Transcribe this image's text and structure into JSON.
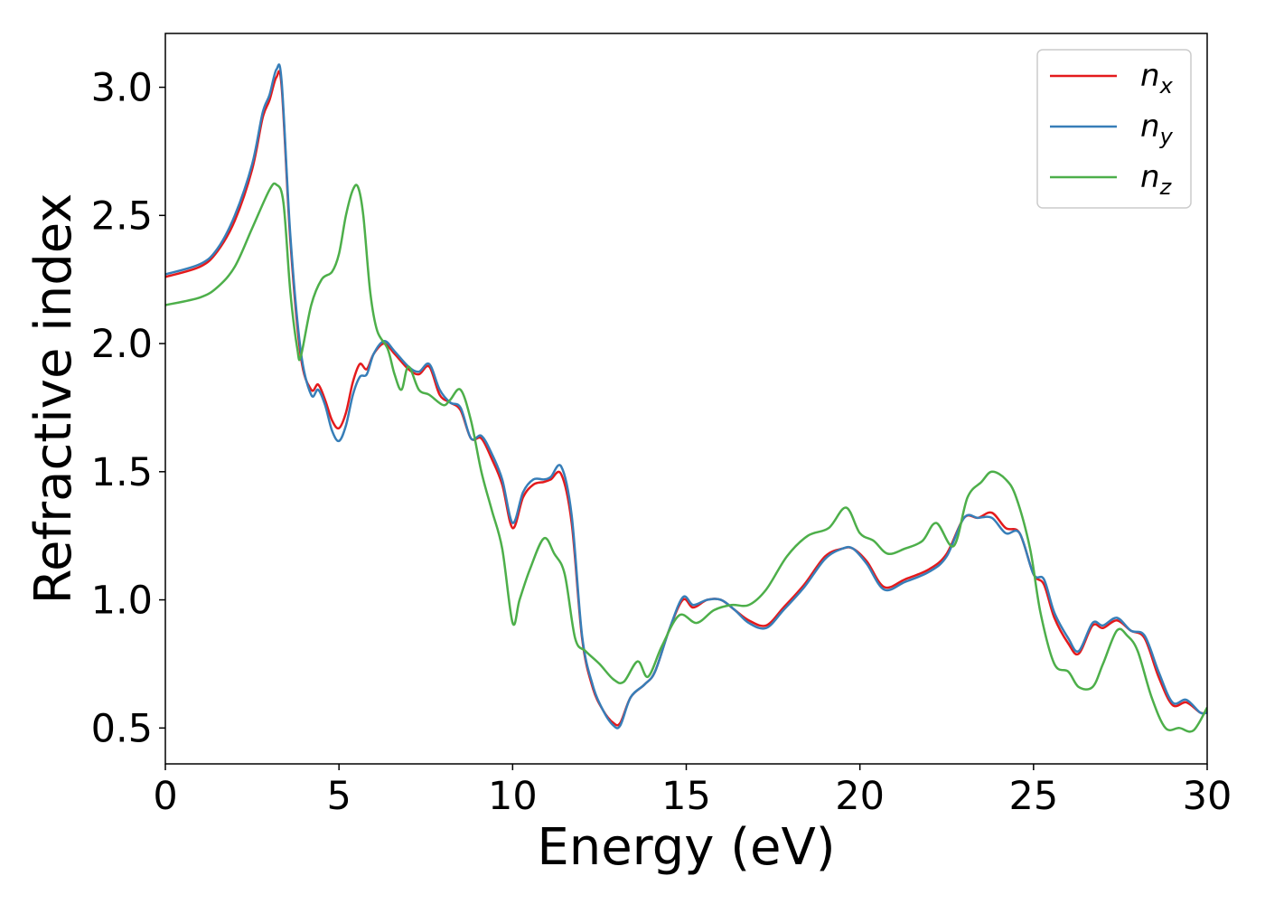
{
  "chart_data": {
    "type": "line",
    "xlabel": "Energy (eV)",
    "ylabel": "Refractive index",
    "xlim": [
      0,
      30
    ],
    "ylim": [
      0.36,
      3.21
    ],
    "xticks": [
      0,
      5,
      10,
      15,
      20,
      25,
      30
    ],
    "xtick_labels": [
      "0",
      "5",
      "10",
      "15",
      "20",
      "25",
      "30"
    ],
    "yticks": [
      0.5,
      1.0,
      1.5,
      2.0,
      2.5,
      3.0
    ],
    "ytick_labels": [
      "0.5",
      "1.0",
      "1.5",
      "2.0",
      "2.5",
      "3.0"
    ],
    "grid": false,
    "legend_position": "top-right",
    "series": [
      {
        "name": "n_x",
        "label_base": "n",
        "label_sub": "x",
        "color": "#e41a1c",
        "x": [
          0,
          1,
          1.5,
          2,
          2.5,
          2.8,
          3.0,
          3.2,
          3.35,
          3.6,
          3.9,
          4.2,
          4.4,
          4.6,
          4.8,
          5.0,
          5.2,
          5.4,
          5.6,
          5.8,
          6.0,
          6.3,
          6.6,
          7.0,
          7.3,
          7.6,
          7.9,
          8.2,
          8.5,
          8.8,
          9.1,
          9.4,
          9.7,
          10.0,
          10.3,
          10.6,
          10.9,
          11.1,
          11.4,
          11.7,
          12.0,
          12.3,
          12.6,
          12.9,
          13.1,
          13.4,
          13.8,
          14.1,
          14.5,
          14.9,
          15.2,
          15.6,
          16.0,
          16.4,
          16.8,
          17.3,
          17.8,
          18.4,
          19.0,
          19.5,
          19.8,
          20.2,
          20.7,
          21.3,
          22.0,
          22.5,
          23.0,
          23.4,
          23.8,
          24.2,
          24.6,
          25.0,
          25.3,
          25.6,
          26.0,
          26.3,
          26.7,
          27.0,
          27.4,
          27.8,
          28.2,
          28.6,
          29.0,
          29.4,
          29.8,
          30
        ],
        "y": [
          2.26,
          2.3,
          2.36,
          2.48,
          2.68,
          2.88,
          2.95,
          3.04,
          3.0,
          2.4,
          1.95,
          1.82,
          1.84,
          1.78,
          1.7,
          1.67,
          1.73,
          1.85,
          1.92,
          1.9,
          1.96,
          2.0,
          1.96,
          1.9,
          1.88,
          1.91,
          1.8,
          1.77,
          1.74,
          1.63,
          1.63,
          1.55,
          1.45,
          1.28,
          1.4,
          1.45,
          1.46,
          1.47,
          1.49,
          1.3,
          0.85,
          0.66,
          0.57,
          0.52,
          0.52,
          0.62,
          0.67,
          0.72,
          0.88,
          1.0,
          0.97,
          1.0,
          1.0,
          0.96,
          0.92,
          0.9,
          0.97,
          1.06,
          1.17,
          1.2,
          1.2,
          1.15,
          1.05,
          1.08,
          1.12,
          1.18,
          1.32,
          1.32,
          1.34,
          1.28,
          1.26,
          1.1,
          1.06,
          0.93,
          0.83,
          0.79,
          0.9,
          0.89,
          0.92,
          0.88,
          0.85,
          0.7,
          0.59,
          0.6,
          0.56,
          0.56
        ]
      },
      {
        "name": "n_y",
        "label_base": "n",
        "label_sub": "y",
        "color": "#377eb8",
        "x": [
          0,
          1,
          1.5,
          2,
          2.5,
          2.8,
          3.0,
          3.2,
          3.35,
          3.6,
          3.9,
          4.2,
          4.4,
          4.6,
          4.8,
          5.0,
          5.2,
          5.4,
          5.6,
          5.8,
          6.0,
          6.3,
          6.6,
          7.0,
          7.3,
          7.6,
          7.9,
          8.2,
          8.5,
          8.8,
          9.1,
          9.4,
          9.7,
          10.0,
          10.3,
          10.6,
          10.9,
          11.1,
          11.4,
          11.7,
          12.0,
          12.3,
          12.6,
          12.9,
          13.1,
          13.4,
          13.8,
          14.1,
          14.5,
          14.9,
          15.2,
          15.6,
          16.0,
          16.4,
          16.8,
          17.3,
          17.8,
          18.4,
          19.0,
          19.5,
          19.8,
          20.2,
          20.7,
          21.3,
          22.0,
          22.5,
          23.0,
          23.4,
          23.8,
          24.2,
          24.6,
          25.0,
          25.3,
          25.6,
          26.0,
          26.3,
          26.7,
          27.0,
          27.4,
          27.8,
          28.2,
          28.6,
          29.0,
          29.4,
          29.8,
          30
        ],
        "y": [
          2.27,
          2.31,
          2.37,
          2.5,
          2.7,
          2.9,
          2.97,
          3.07,
          3.02,
          2.42,
          1.97,
          1.8,
          1.82,
          1.76,
          1.66,
          1.62,
          1.68,
          1.8,
          1.87,
          1.88,
          1.96,
          2.01,
          1.97,
          1.91,
          1.89,
          1.92,
          1.82,
          1.77,
          1.75,
          1.63,
          1.64,
          1.57,
          1.47,
          1.3,
          1.42,
          1.47,
          1.47,
          1.48,
          1.52,
          1.33,
          0.86,
          0.67,
          0.57,
          0.51,
          0.51,
          0.62,
          0.67,
          0.72,
          0.88,
          1.01,
          0.98,
          1.0,
          1.0,
          0.96,
          0.91,
          0.89,
          0.96,
          1.05,
          1.16,
          1.2,
          1.2,
          1.14,
          1.04,
          1.07,
          1.11,
          1.17,
          1.32,
          1.32,
          1.32,
          1.26,
          1.26,
          1.1,
          1.08,
          0.95,
          0.85,
          0.8,
          0.91,
          0.9,
          0.93,
          0.88,
          0.86,
          0.72,
          0.6,
          0.61,
          0.56,
          0.56
        ]
      },
      {
        "name": "n_z",
        "label_base": "n",
        "label_sub": "z",
        "color": "#4daf4a",
        "x": [
          0,
          1,
          1.5,
          2,
          2.5,
          3.0,
          3.2,
          3.4,
          3.6,
          3.8,
          3.9,
          4.2,
          4.5,
          4.8,
          5.0,
          5.2,
          5.4,
          5.55,
          5.7,
          5.9,
          6.1,
          6.4,
          6.6,
          6.8,
          7.0,
          7.3,
          7.6,
          8.0,
          8.2,
          8.5,
          8.8,
          9.1,
          9.4,
          9.7,
          10.0,
          10.2,
          10.5,
          10.9,
          11.2,
          11.5,
          11.8,
          12.1,
          12.5,
          12.9,
          13.2,
          13.6,
          13.9,
          14.3,
          14.8,
          15.3,
          15.8,
          16.3,
          16.8,
          17.3,
          17.9,
          18.5,
          19.1,
          19.6,
          20.0,
          20.4,
          20.8,
          21.3,
          21.8,
          22.2,
          22.7,
          23.1,
          23.5,
          23.8,
          24.2,
          24.5,
          24.9,
          25.2,
          25.6,
          26.0,
          26.3,
          26.7,
          27.0,
          27.4,
          27.7,
          28.0,
          28.4,
          28.8,
          29.2,
          29.6,
          30
        ],
        "y": [
          2.15,
          2.18,
          2.22,
          2.3,
          2.45,
          2.6,
          2.62,
          2.55,
          2.2,
          1.98,
          1.95,
          2.15,
          2.25,
          2.28,
          2.35,
          2.5,
          2.6,
          2.61,
          2.5,
          2.2,
          2.05,
          1.98,
          1.88,
          1.82,
          1.91,
          1.82,
          1.8,
          1.76,
          1.78,
          1.82,
          1.7,
          1.5,
          1.35,
          1.2,
          0.91,
          1.0,
          1.12,
          1.24,
          1.18,
          1.1,
          0.85,
          0.8,
          0.75,
          0.69,
          0.68,
          0.76,
          0.7,
          0.82,
          0.94,
          0.91,
          0.96,
          0.98,
          0.98,
          1.04,
          1.17,
          1.25,
          1.28,
          1.36,
          1.26,
          1.23,
          1.18,
          1.2,
          1.23,
          1.3,
          1.21,
          1.4,
          1.46,
          1.5,
          1.47,
          1.4,
          1.2,
          0.95,
          0.75,
          0.72,
          0.66,
          0.66,
          0.75,
          0.88,
          0.86,
          0.8,
          0.62,
          0.5,
          0.5,
          0.49,
          0.58
        ]
      }
    ]
  }
}
